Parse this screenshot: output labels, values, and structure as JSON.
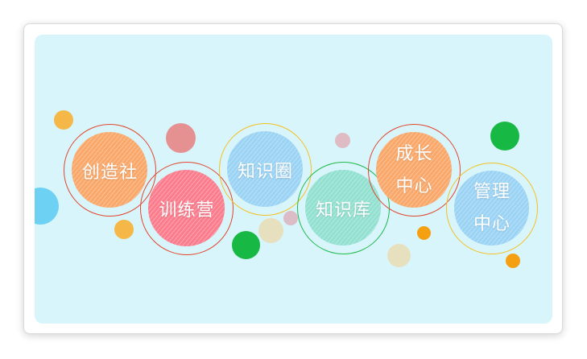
{
  "colors": {
    "background": "#d8f5fb",
    "orange_fill": "#f9a86a",
    "pink_fill": "#fb7c8c",
    "blue_fill": "#9bd3f4",
    "teal_fill": "#92e0d0",
    "red_ring": "#e2452c",
    "yellow_ring": "#f5c020",
    "green_ring": "#1db94a"
  },
  "bubbles": [
    {
      "line1": "创造社",
      "line2": "",
      "fill": "#f9a86a",
      "ring": "#e2452c"
    },
    {
      "line1": "训练营",
      "line2": "",
      "fill": "#fb7c8c",
      "ring": "#e2452c"
    },
    {
      "line1": "知识圈",
      "line2": "",
      "fill": "#9bd3f4",
      "ring": "#f5c020"
    },
    {
      "line1": "知识库",
      "line2": "",
      "fill": "#92e0d0",
      "ring": "#1db94a"
    },
    {
      "line1": "成长",
      "line2": "中心",
      "fill": "#f9a86a",
      "ring": "#e2452c"
    },
    {
      "line1": "管理",
      "line2": "中心",
      "fill": "#9bd3f4",
      "ring": "#f5c020"
    }
  ]
}
